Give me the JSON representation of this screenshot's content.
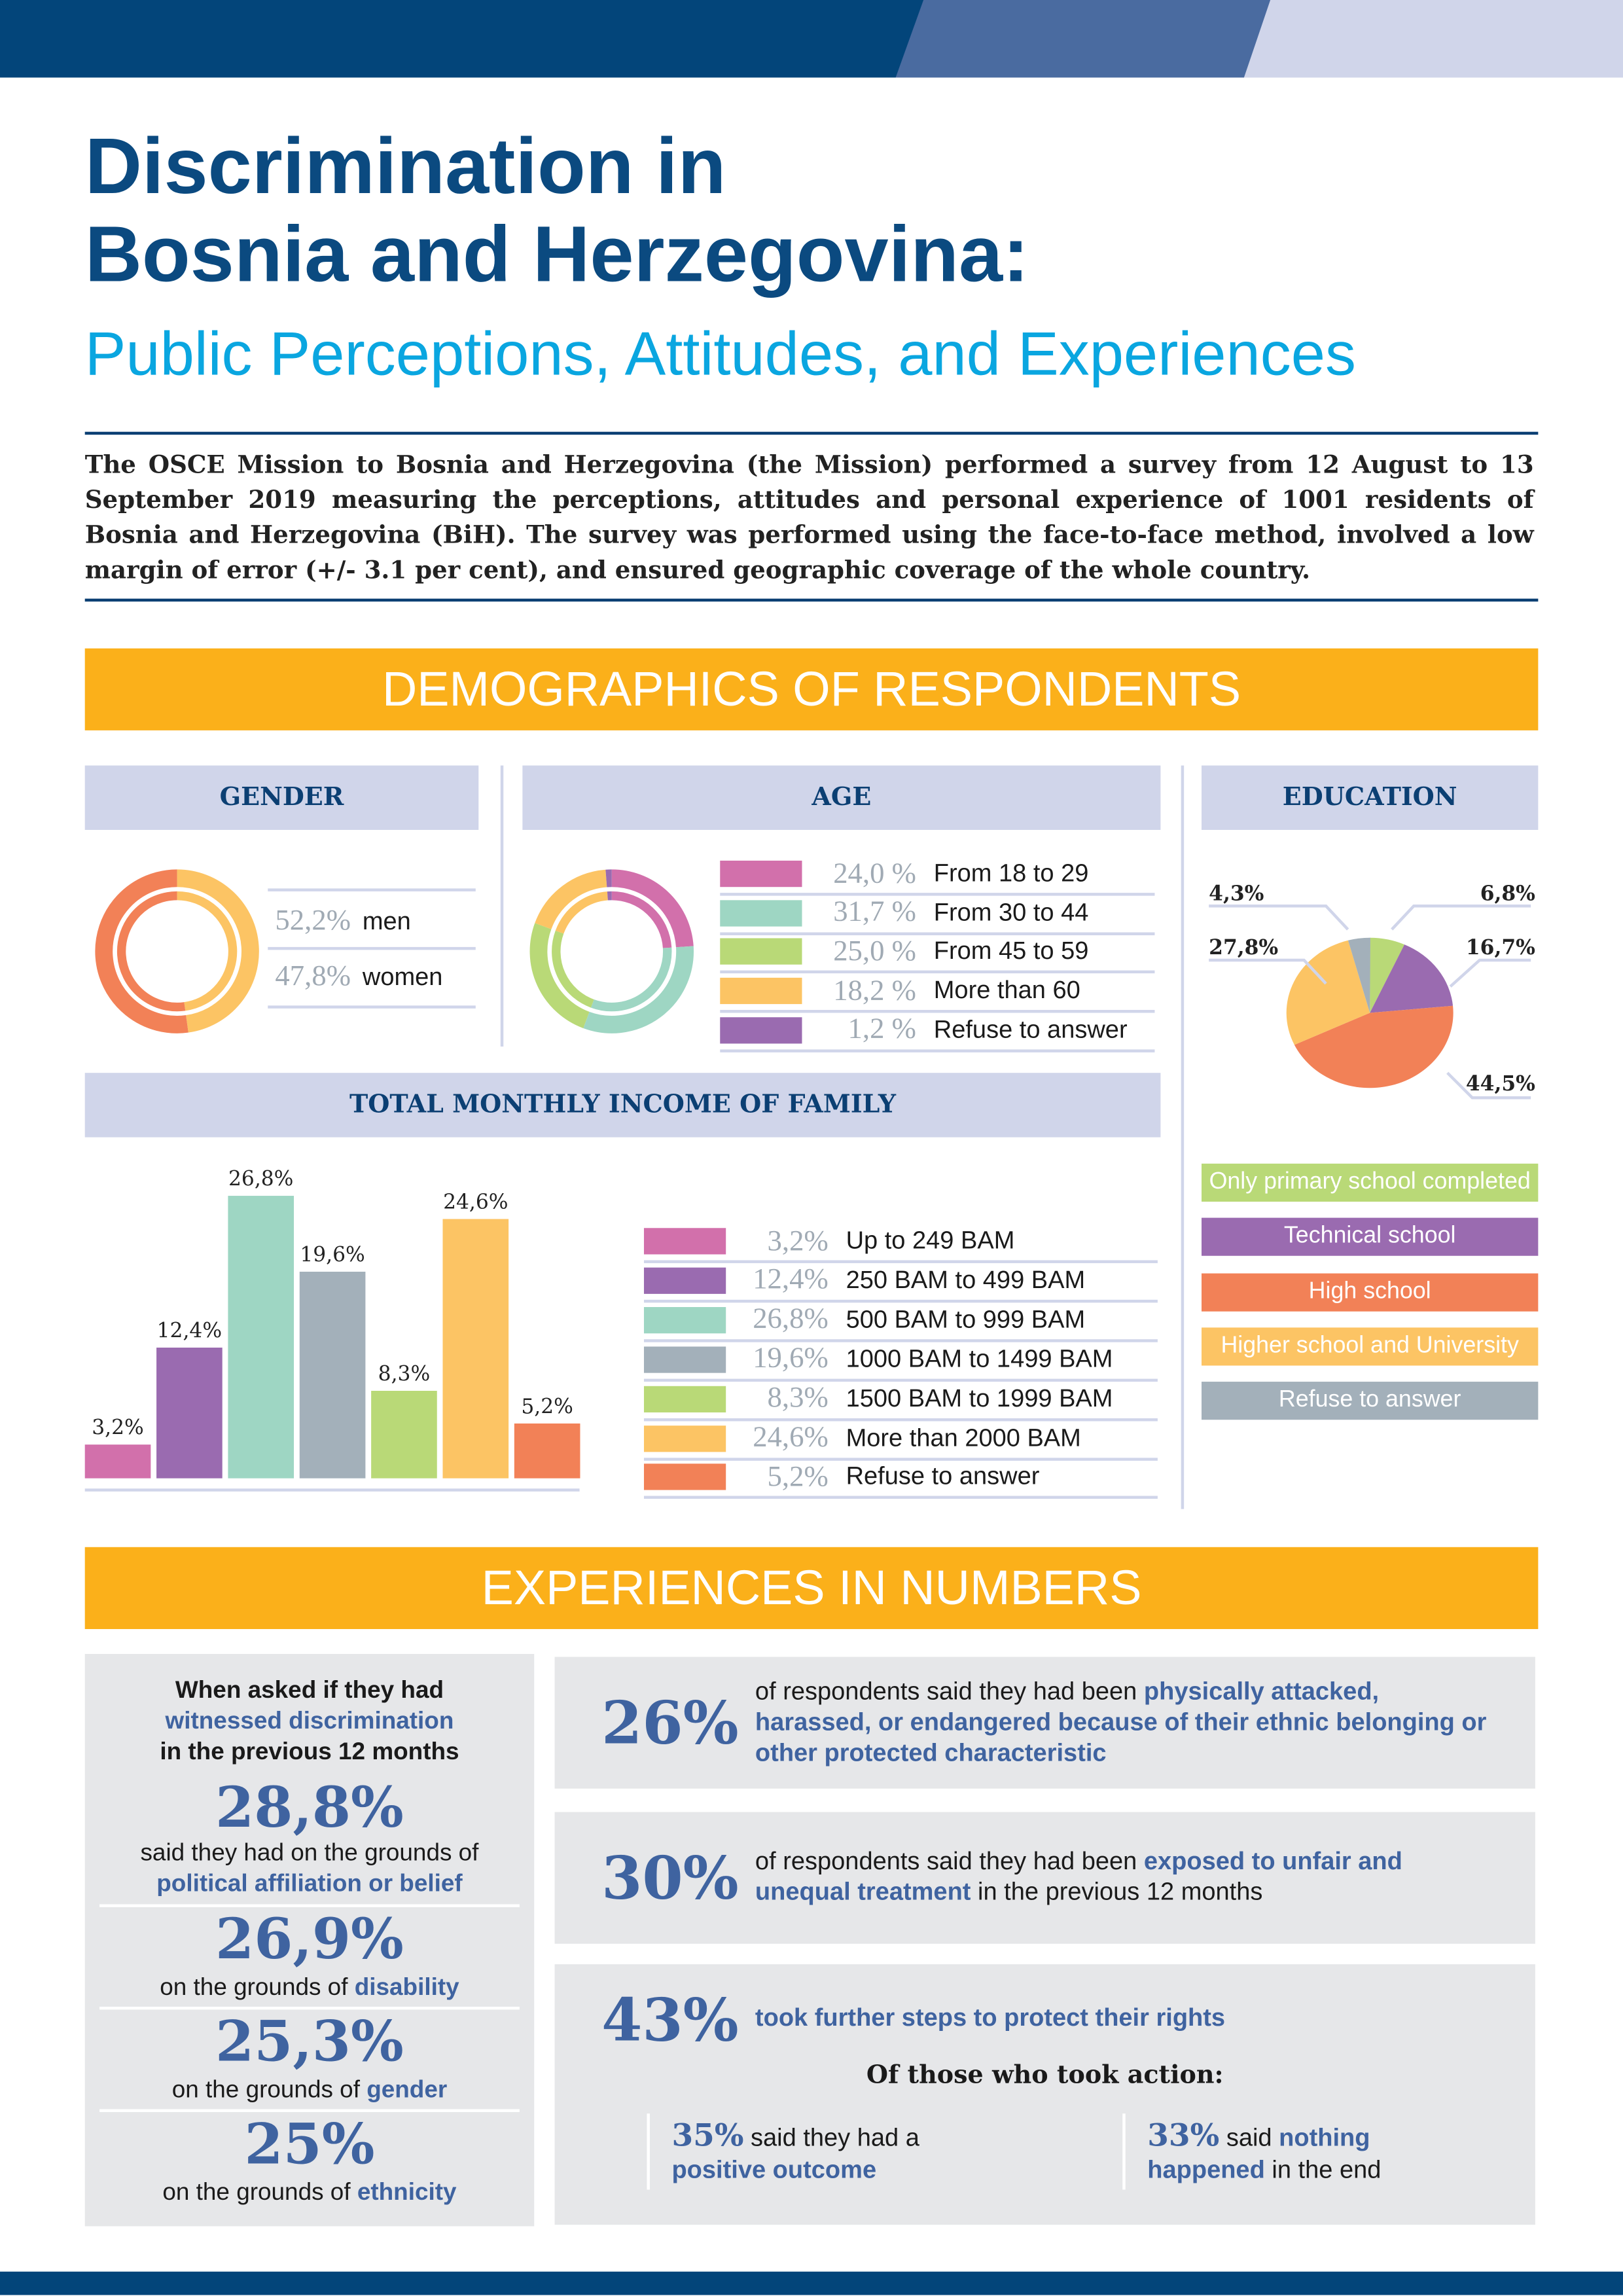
{
  "header": {
    "title_line1": "Discrimination in",
    "title_line2": "Bosnia and Herzegovina:",
    "subtitle": "Public Perceptions, Attitudes, and Experiences",
    "intro": "The OSCE Mission to Bosnia and Herzegovina (the Mission) performed a survey from 12 August to 13 September 2019 measuring the perceptions, attitudes and personal experience of 1001 residents of Bosnia and Herzegovina (BiH). The survey was performed using the face-to-face method, involved a low margin of error (+/- 3.1 per cent), and ensured geographic coverage of the whole country."
  },
  "colors": {
    "navy": "#03457a",
    "mid_blue": "#4a6ba0",
    "light": "#d0d5ea",
    "orange_banner": "#fbb01a",
    "cyan": "#0aa6e0"
  },
  "demographics": {
    "banner": "DEMOGRAPHICS OF RESPONDENTS",
    "gender": {
      "title": "GENDER",
      "items": [
        {
          "pct": "52,2%",
          "label": "men",
          "value": 52.2,
          "color": "#f28157"
        },
        {
          "pct": "47,8%",
          "label": "women",
          "value": 47.8,
          "color": "#fcc464"
        }
      ]
    },
    "age": {
      "title": "AGE",
      "items": [
        {
          "pct": "24,0 %",
          "label": "From 18 to 29",
          "value": 24.0,
          "color": "#d270ab"
        },
        {
          "pct": "31,7 %",
          "label": "From 30 to 44",
          "value": 31.7,
          "color": "#9ed6c3"
        },
        {
          "pct": "25,0 %",
          "label": "From 45 to 59",
          "value": 25.0,
          "color": "#b9d977"
        },
        {
          "pct": "18,2 %",
          "label": "More than 60",
          "value": 18.2,
          "color": "#fcc464"
        },
        {
          "pct": "1,2 %",
          "label": "Refuse to answer",
          "value": 1.2,
          "color": "#9a6bb0"
        }
      ]
    },
    "education": {
      "title": "EDUCATION",
      "items": [
        {
          "pct": "6,8%",
          "label": "Only primary school completed",
          "value": 6.8,
          "color": "#b9d977"
        },
        {
          "pct": "16,7%",
          "label": "Technical school",
          "value": 16.7,
          "color": "#9a6bb0"
        },
        {
          "pct": "44,5%",
          "label": "High school",
          "value": 44.5,
          "color": "#f28157"
        },
        {
          "pct": "27,8%",
          "label": "Higher school and University",
          "value": 27.8,
          "color": "#fcc464"
        },
        {
          "pct": "4,3%",
          "label": "Refuse to answer",
          "value": 4.3,
          "color": "#a3b0ba"
        }
      ]
    },
    "income": {
      "title": "TOTAL MONTHLY INCOME OF FAMILY"
    }
  },
  "chart_data": {
    "type": "bar",
    "title": "TOTAL MONTHLY INCOME OF FAMILY",
    "categories": [
      "Up to 249 BAM",
      "250 BAM to 499 BAM",
      "500 BAM to 999 BAM",
      "1000 BAM to 1499 BAM",
      "1500 BAM to 1999 BAM",
      "More than 2000 BAM",
      "Refuse to answer"
    ],
    "values": [
      3.2,
      12.4,
      26.8,
      19.6,
      8.3,
      24.6,
      5.2
    ],
    "labels": [
      "3,2%",
      "12,4%",
      "26,8%",
      "19,6%",
      "8,3%",
      "24,6%",
      "5,2%"
    ],
    "colors": [
      "#d270ab",
      "#9a6bb0",
      "#9ed6c3",
      "#a3b0ba",
      "#b9d977",
      "#fcc464",
      "#f28157"
    ],
    "ylim": [
      0,
      30
    ],
    "xlabel": "",
    "ylabel": "",
    "grid": false
  },
  "experiences": {
    "banner": "EXPERIENCES IN NUMBERS",
    "witnessed": {
      "q1": "When asked if they had",
      "q2": "witnessed discrimination",
      "q3": "in the previous 12 months",
      "items": [
        {
          "pct": "28,8%",
          "pre": "said they had on the grounds of",
          "ground": "political affiliation or belief"
        },
        {
          "pct": "26,9%",
          "pre": "on the grounds of ",
          "ground": "disability"
        },
        {
          "pct": "25,3%",
          "pre": "on the grounds of ",
          "ground": "gender"
        },
        {
          "pct": "25%",
          "pre": "on the grounds of ",
          "ground": "ethnicity"
        }
      ]
    },
    "stat1": {
      "pct": "26%",
      "pre": "of respondents said they had been ",
      "hl": "physically attacked, harassed, or endangered because of their ethnic belonging or other protected characteristic"
    },
    "stat2": {
      "pct": "30%",
      "pre": "of respondents said they had been ",
      "hl": "exposed to unfair and unequal treatment",
      "post": " in the previous 12 months"
    },
    "stat3": {
      "pct": "43%",
      "hl": "took further steps to protect their rights",
      "sub": "Of those who took action:",
      "a": {
        "pct": "35%",
        "pre": " said they had a ",
        "hl": "positive outcome"
      },
      "b": {
        "pct": "33%",
        "pre": " said ",
        "hl": "nothing happened",
        "post": " in the end"
      }
    }
  }
}
